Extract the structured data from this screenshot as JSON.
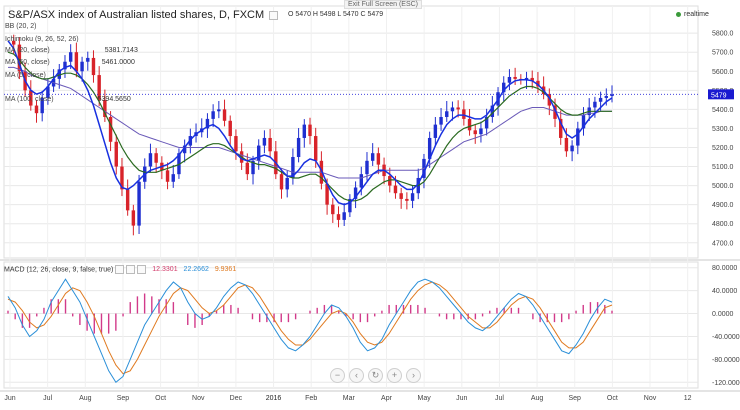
{
  "header": {
    "title": "S&P/ASX index of Australian listed shares, D, FXCM",
    "ohlc": "O 5470  H 5498  L 5470  C 5479",
    "exit_fullscreen": "Exit Full Screen (ESC)",
    "realtime": "realtime"
  },
  "indicators": [
    {
      "label": "BB (20, 2)",
      "value": ""
    },
    {
      "label": "Ichimoku (9, 26, 52, 26)",
      "value": ""
    },
    {
      "label": "MA (20, close)",
      "value": "5381.7143"
    },
    {
      "label": "MA (50, close)",
      "value": "5461.0000"
    },
    {
      "label": "MA (5, close)",
      "value": ""
    },
    {
      "label": "MA (100, close)",
      "value": "5394.5650"
    }
  ],
  "macd": {
    "label": "MACD (12, 26, close, 9, false, true)",
    "hist_value": "12.3301",
    "macd_value": "22.2662",
    "signal_value": "9.9361"
  },
  "price_badge": "5479",
  "controls": [
    "minus",
    "back",
    "reset",
    "plus",
    "forward"
  ],
  "colors": {
    "bull": "#1f2fd0",
    "bear": "#d8232a",
    "ma_fast": "#1830e0",
    "ma_mid": "#2a6a20",
    "ma_slow": "#6a5ab8",
    "macd_line": "#2a8fd8",
    "signal_line": "#e07a20",
    "hist": "#d23a8a",
    "grid": "#e8e8e8",
    "price_line": "#2a2ad8"
  },
  "chart_data": [
    {
      "type": "candlestick",
      "y_ticks": [
        "5800.0",
        "5700.0",
        "5600.0",
        "5500.0",
        "5400.0",
        "5300.0",
        "5200.0",
        "5100.0",
        "5000.0",
        "4900.0",
        "4800.0",
        "4700.0"
      ],
      "ylim": [
        4620,
        5890
      ],
      "x_ticks": [
        "Jun",
        "Jul",
        "Aug",
        "Sep",
        "Oct",
        "Nov",
        "Dec",
        "2016",
        "Feb",
        "Mar",
        "Apr",
        "May",
        "Jun",
        "Jul",
        "Aug",
        "Sep",
        "Oct",
        "Nov",
        "12"
      ],
      "last_price": 5479,
      "close_path": [
        5760,
        5740,
        5600,
        5500,
        5420,
        5380,
        5460,
        5520,
        5560,
        5610,
        5650,
        5700,
        5600,
        5650,
        5670,
        5580,
        5450,
        5360,
        5230,
        5100,
        4980,
        4870,
        4790,
        5020,
        5100,
        5170,
        5120,
        5080,
        5020,
        5060,
        5170,
        5210,
        5260,
        5280,
        5300,
        5350,
        5390,
        5400,
        5340,
        5260,
        5180,
        5120,
        5060,
        5130,
        5210,
        5250,
        5180,
        5060,
        4980,
        5040,
        5150,
        5250,
        5320,
        5260,
        5130,
        5010,
        4900,
        4850,
        4820,
        4860,
        4930,
        4990,
        5060,
        5130,
        5170,
        5110,
        5050,
        5000,
        4960,
        4930,
        4920,
        4960,
        5040,
        5140,
        5250,
        5320,
        5360,
        5390,
        5410,
        5400,
        5350,
        5290,
        5270,
        5300,
        5360,
        5420,
        5490,
        5540,
        5570,
        5560,
        5555,
        5565,
        5550,
        5520,
        5480,
        5420,
        5350,
        5250,
        5180,
        5210,
        5300,
        5370,
        5410,
        5440,
        5460,
        5470,
        5479
      ],
      "ma_fast": [
        5760,
        5720,
        5640,
        5550,
        5500,
        5480,
        5490,
        5520,
        5560,
        5600,
        5620,
        5630,
        5600,
        5560,
        5500,
        5420,
        5320,
        5220,
        5120,
        5040,
        4990,
        4980,
        5000,
        5030,
        5060,
        5080,
        5090,
        5100,
        5110,
        5130,
        5160,
        5200,
        5240,
        5270,
        5290,
        5310,
        5320,
        5300,
        5260,
        5210,
        5170,
        5140,
        5130,
        5140,
        5150,
        5160,
        5150,
        5120,
        5080,
        5050,
        5050,
        5080,
        5120,
        5140,
        5130,
        5080,
        5010,
        4950,
        4910,
        4900,
        4910,
        4940,
        4980,
        5020,
        5060,
        5080,
        5080,
        5060,
        5030,
        5000,
        4980,
        4980,
        5010,
        5070,
        5140,
        5210,
        5270,
        5320,
        5350,
        5370,
        5370,
        5360,
        5350,
        5350,
        5370,
        5410,
        5450,
        5500,
        5530,
        5550,
        5555,
        5555,
        5550,
        5530,
        5500,
        5460,
        5400,
        5330,
        5270,
        5250,
        5270,
        5310,
        5350,
        5380,
        5410,
        5440,
        5460
      ],
      "ma_mid": [
        5700,
        5690,
        5660,
        5620,
        5590,
        5570,
        5560,
        5560,
        5570,
        5580,
        5590,
        5590,
        5580,
        5560,
        5530,
        5490,
        5440,
        5380,
        5320,
        5260,
        5200,
        5150,
        5110,
        5080,
        5070,
        5070,
        5070,
        5080,
        5090,
        5100,
        5110,
        5130,
        5150,
        5170,
        5190,
        5210,
        5220,
        5220,
        5210,
        5190,
        5170,
        5150,
        5130,
        5120,
        5110,
        5110,
        5100,
        5090,
        5070,
        5050,
        5040,
        5040,
        5050,
        5060,
        5060,
        5040,
        5010,
        4980,
        4950,
        4930,
        4920,
        4920,
        4930,
        4950,
        4980,
        5000,
        5020,
        5030,
        5030,
        5020,
        5010,
        5000,
        5000,
        5020,
        5060,
        5110,
        5160,
        5210,
        5250,
        5280,
        5300,
        5310,
        5320,
        5330,
        5350,
        5380,
        5410,
        5440,
        5470,
        5490,
        5510,
        5520,
        5520,
        5510,
        5490,
        5460,
        5430,
        5400,
        5380,
        5370,
        5370,
        5380,
        5390,
        5390,
        5390,
        5390,
        5390
      ],
      "ma_slow": [
        5620,
        5620,
        5610,
        5600,
        5580,
        5570,
        5560,
        5550,
        5540,
        5530,
        5520,
        5510,
        5490,
        5470,
        5450,
        5430,
        5410,
        5390,
        5370,
        5350,
        5330,
        5310,
        5290,
        5270,
        5260,
        5250,
        5240,
        5230,
        5220,
        5210,
        5200,
        5200,
        5200,
        5200,
        5200,
        5200,
        5200,
        5200,
        5190,
        5180,
        5170,
        5160,
        5150,
        5140,
        5130,
        5120,
        5110,
        5100,
        5090,
        5080,
        5070,
        5070,
        5070,
        5070,
        5070,
        5070,
        5060,
        5050,
        5040,
        5040,
        5040,
        5040,
        5040,
        5050,
        5060,
        5070,
        5080,
        5080,
        5080,
        5080,
        5080,
        5080,
        5080,
        5090,
        5110,
        5130,
        5150,
        5170,
        5190,
        5210,
        5230,
        5240,
        5250,
        5260,
        5270,
        5290,
        5310,
        5330,
        5350,
        5370,
        5390,
        5400,
        5410,
        5410,
        5410,
        5400,
        5390,
        5380,
        5370,
        5370,
        5370,
        5370,
        5380,
        5380,
        5390,
        5390,
        5390
      ]
    },
    {
      "type": "macd",
      "y_ticks": [
        "80.0000",
        "40.0000",
        "0.0000",
        "-40.0000",
        "-80.0000",
        "-120.0000"
      ],
      "ylim": [
        -130,
        90
      ],
      "macd_line": [
        30,
        10,
        -20,
        -40,
        -30,
        -10,
        20,
        40,
        60,
        40,
        20,
        -10,
        -40,
        -70,
        -100,
        -120,
        -110,
        -80,
        -50,
        -20,
        0,
        20,
        40,
        55,
        45,
        20,
        0,
        -10,
        -5,
        10,
        30,
        45,
        55,
        50,
        35,
        15,
        -5,
        -25,
        -45,
        -60,
        -65,
        -55,
        -40,
        -20,
        0,
        15,
        10,
        -5,
        -25,
        -50,
        -65,
        -60,
        -45,
        -20,
        0,
        20,
        40,
        55,
        60,
        55,
        45,
        30,
        15,
        0,
        -15,
        -25,
        -30,
        -20,
        -5,
        10,
        25,
        35,
        30,
        15,
        -5,
        -25,
        -45,
        -65,
        -70,
        -55,
        -35,
        -10,
        10,
        25,
        20
      ],
      "signal_line": [
        25,
        20,
        5,
        -15,
        -25,
        -20,
        -5,
        15,
        35,
        45,
        40,
        20,
        -5,
        -35,
        -65,
        -90,
        -105,
        -100,
        -80,
        -55,
        -30,
        -5,
        15,
        35,
        45,
        40,
        25,
        10,
        0,
        5,
        15,
        30,
        45,
        50,
        45,
        30,
        10,
        -10,
        -30,
        -45,
        -55,
        -55,
        -45,
        -30,
        -15,
        0,
        5,
        0,
        -15,
        -35,
        -50,
        -55,
        -50,
        -35,
        -15,
        5,
        25,
        40,
        50,
        55,
        50,
        40,
        25,
        10,
        -5,
        -15,
        -25,
        -25,
        -15,
        0,
        15,
        25,
        30,
        25,
        10,
        -10,
        -30,
        -50,
        -60,
        -60,
        -50,
        -30,
        -10,
        10,
        15
      ],
      "histogram": [
        5,
        -10,
        -25,
        -25,
        -5,
        10,
        25,
        25,
        25,
        -5,
        -20,
        -30,
        -35,
        -35,
        -35,
        -30,
        -5,
        20,
        30,
        35,
        30,
        25,
        25,
        20,
        0,
        -20,
        -25,
        -20,
        -5,
        5,
        15,
        15,
        10,
        0,
        -10,
        -15,
        -15,
        -15,
        -15,
        -15,
        -10,
        0,
        5,
        10,
        15,
        15,
        5,
        -5,
        -10,
        -15,
        -15,
        -5,
        5,
        15,
        15,
        15,
        15,
        15,
        10,
        0,
        -5,
        -10,
        -10,
        -10,
        -10,
        -10,
        -5,
        5,
        10,
        10,
        10,
        10,
        0,
        -10,
        -15,
        -15,
        -15,
        -15,
        -10,
        5,
        15,
        20,
        20,
        15,
        5
      ]
    }
  ]
}
